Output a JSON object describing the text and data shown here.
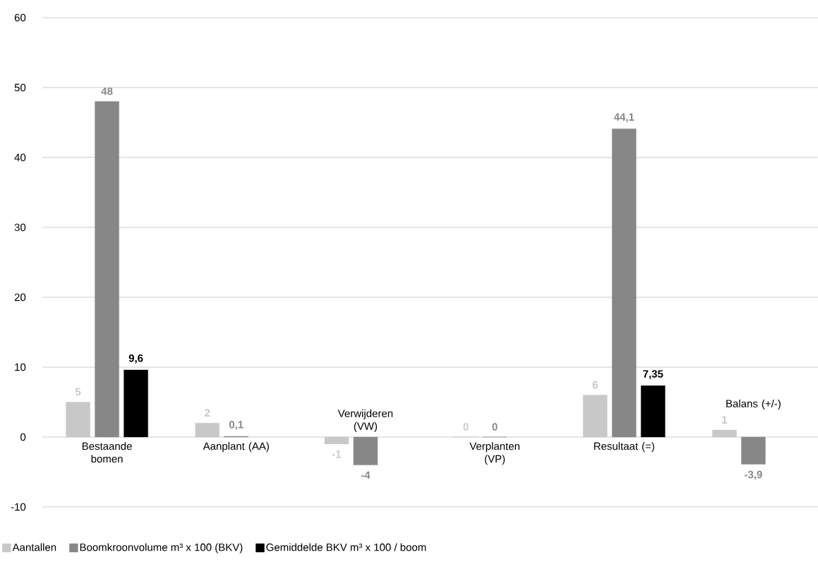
{
  "chart_data": {
    "type": "bar",
    "categories": [
      "Bestaande bomen",
      "Aanplant (AA)",
      "Verwijderen (VW)",
      "Verplanten (VP)",
      "Resultaat (=)",
      "Balans (+/-)"
    ],
    "series": [
      {
        "name": "Aantallen",
        "color": "#c8c8c8",
        "values": [
          5,
          2,
          -1,
          0,
          6,
          1
        ],
        "value_labels": [
          "5",
          "2",
          "-1",
          "0",
          "6",
          "1"
        ]
      },
      {
        "name": "Boomkroonvolume m³ x 100 (BKV)",
        "color": "#878787",
        "values": [
          48,
          0.1,
          -4,
          0,
          44.1,
          -3.9
        ],
        "value_labels": [
          "48",
          "0,1",
          "-4",
          "0",
          "44,1",
          "-3,9"
        ]
      },
      {
        "name": "Gemiddelde BKV m³ x 100 / boom",
        "color": "#000000",
        "values": [
          9.6,
          null,
          null,
          null,
          7.35,
          null
        ],
        "value_labels": [
          "9,6",
          null,
          null,
          null,
          "7,35",
          null
        ]
      }
    ],
    "ylim": [
      -10,
      60
    ],
    "yticks": [
      -10,
      0,
      10,
      20,
      30,
      40,
      50,
      60
    ],
    "grid": "y",
    "legend": "bottom left"
  }
}
